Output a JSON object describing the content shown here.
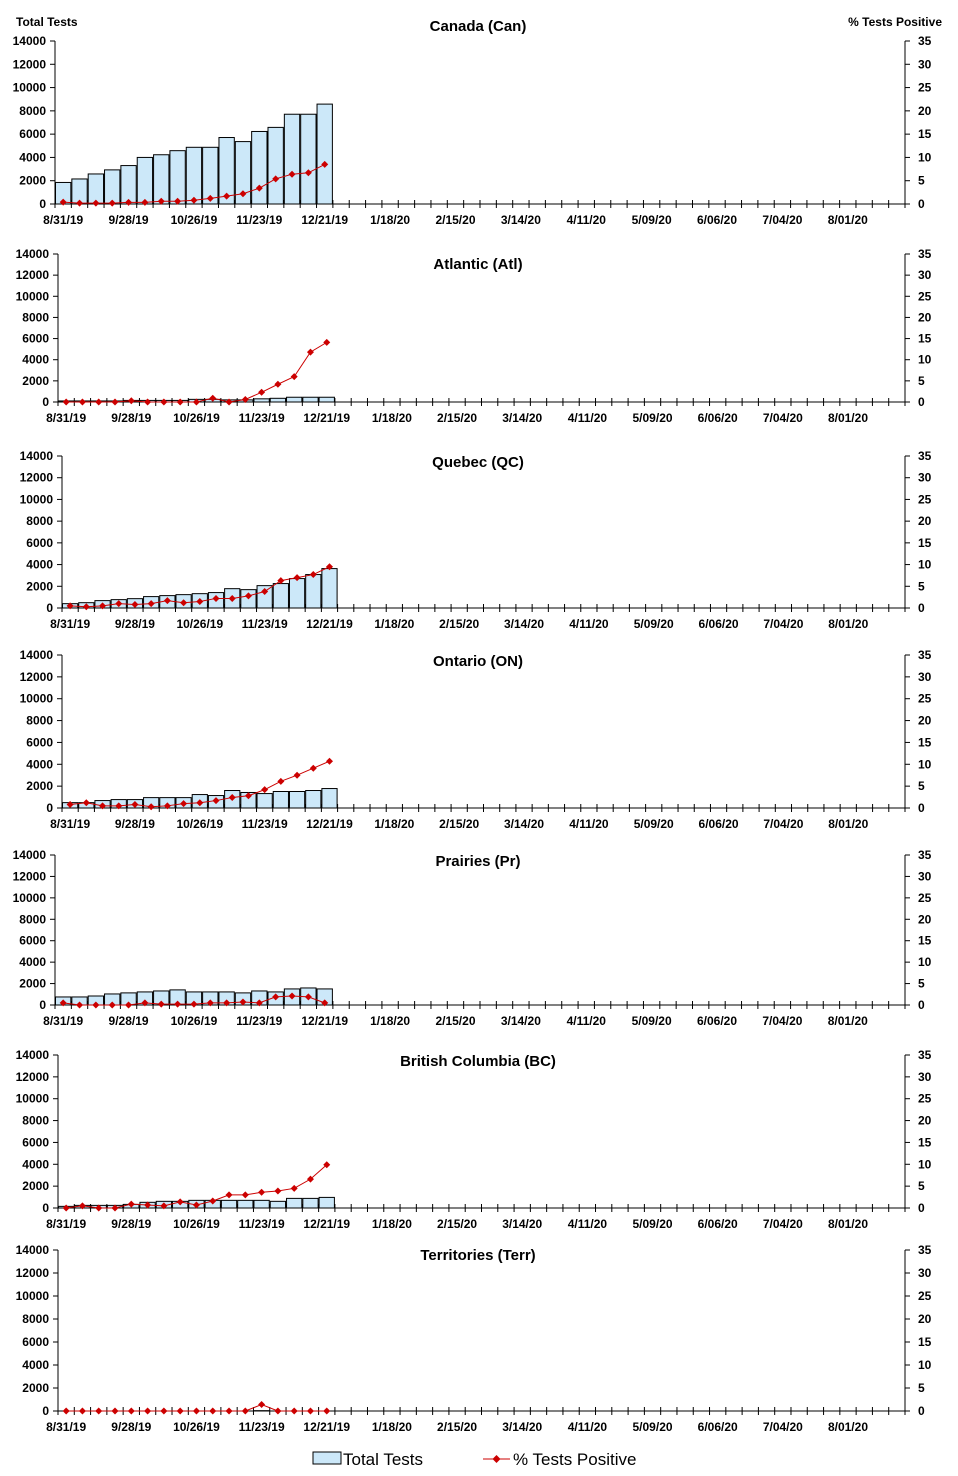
{
  "axis_headers": {
    "left": "Total Tests",
    "right": "% Tests Positive"
  },
  "legend": {
    "bars": "Total Tests",
    "line": "% Tests Positive",
    "position": "bottom"
  },
  "colors": {
    "bar_fill": "#cce8f9",
    "bar_stroke": "#000000",
    "line": "#cc0000"
  },
  "chart_data": [
    {
      "type": "bar+line",
      "title": "Canada (Can)",
      "ylim": [
        0,
        14000
      ],
      "y2lim": [
        0,
        35
      ],
      "x_tick_labels": [
        "8/31/19",
        "9/28/19",
        "10/26/19",
        "11/23/19",
        "12/21/19",
        "1/18/20",
        "2/15/20",
        "3/14/20",
        "4/11/20",
        "5/09/20",
        "6/06/20",
        "7/04/20",
        "8/01/20"
      ],
      "total_tests": [
        1850,
        2150,
        2580,
        2930,
        3300,
        4000,
        4230,
        4580,
        4870,
        4870,
        5710,
        5360,
        6230,
        6580,
        7710,
        7710,
        8580
      ],
      "pct_positive": [
        0.4,
        0.2,
        0.2,
        0.2,
        0.35,
        0.35,
        0.6,
        0.6,
        0.8,
        1.2,
        1.7,
        2.2,
        3.4,
        5.4,
        6.4,
        6.7,
        8.5
      ]
    },
    {
      "type": "bar+line",
      "title": "Atlantic (Atl)",
      "ylim": [
        0,
        14000
      ],
      "y2lim": [
        0,
        35
      ],
      "x_tick_labels": [
        "8/31/19",
        "9/28/19",
        "10/26/19",
        "11/23/19",
        "12/21/19",
        "1/18/20",
        "2/15/20",
        "3/14/20",
        "4/11/20",
        "5/09/20",
        "6/06/20",
        "7/04/20",
        "8/01/20"
      ],
      "total_tests": [
        100,
        100,
        100,
        100,
        150,
        150,
        150,
        150,
        250,
        250,
        200,
        200,
        300,
        350,
        450,
        450,
        450
      ],
      "pct_positive": [
        0,
        0,
        0,
        0,
        0.3,
        0,
        0,
        0,
        0,
        0.9,
        0,
        0.6,
        2.3,
        4.2,
        6.0,
        11.8,
        14.1
      ]
    },
    {
      "type": "bar+line",
      "title": "Quebec (QC)",
      "ylim": [
        0,
        14000
      ],
      "y2lim": [
        0,
        35
      ],
      "x_tick_labels": [
        "8/31/19",
        "9/28/19",
        "10/26/19",
        "11/23/19",
        "12/21/19",
        "1/18/20",
        "2/15/20",
        "3/14/20",
        "4/11/20",
        "5/09/20",
        "6/06/20",
        "7/04/20",
        "8/01/20"
      ],
      "total_tests": [
        400,
        490,
        680,
        770,
        860,
        1050,
        1140,
        1230,
        1320,
        1420,
        1780,
        1690,
        2060,
        2250,
        2710,
        3080,
        3630
      ],
      "pct_positive": [
        0.5,
        0.3,
        0.5,
        1.0,
        0.8,
        1.0,
        1.7,
        1.2,
        1.5,
        2.2,
        2.2,
        2.8,
        3.8,
        6.3,
        7.0,
        7.7,
        9.5
      ]
    },
    {
      "type": "bar+line",
      "title": "Ontario (ON)",
      "ylim": [
        0,
        14000
      ],
      "y2lim": [
        0,
        35
      ],
      "x_tick_labels": [
        "8/31/19",
        "9/28/19",
        "10/26/19",
        "11/23/19",
        "12/21/19",
        "1/18/20",
        "2/15/20",
        "3/14/20",
        "4/11/20",
        "5/09/20",
        "6/06/20",
        "7/04/20",
        "8/01/20"
      ],
      "total_tests": [
        490,
        490,
        680,
        770,
        770,
        950,
        950,
        950,
        1230,
        1140,
        1600,
        1420,
        1320,
        1510,
        1510,
        1600,
        1780
      ],
      "pct_positive": [
        0.8,
        1.2,
        0.5,
        0.5,
        0.8,
        0.3,
        0.5,
        1.0,
        1.2,
        1.7,
        2.4,
        2.8,
        4.2,
        6.1,
        7.5,
        9.1,
        10.7
      ]
    },
    {
      "type": "bar+line",
      "title": "Prairies (Pr)",
      "ylim": [
        0,
        14000
      ],
      "y2lim": [
        0,
        35
      ],
      "x_tick_labels": [
        "8/31/19",
        "9/28/19",
        "10/26/19",
        "11/23/19",
        "12/21/19",
        "1/18/20",
        "2/15/20",
        "3/14/20",
        "4/11/20",
        "5/09/20",
        "6/06/20",
        "7/04/20",
        "8/01/20"
      ],
      "total_tests": [
        750,
        750,
        840,
        1030,
        1130,
        1220,
        1310,
        1410,
        1220,
        1220,
        1220,
        1130,
        1310,
        1220,
        1500,
        1590,
        1500
      ],
      "pct_positive": [
        0.5,
        0,
        0,
        0,
        0,
        0.5,
        0.2,
        0.2,
        0.2,
        0.5,
        0.5,
        0.7,
        0.5,
        1.9,
        2.1,
        1.9,
        0.5
      ]
    },
    {
      "type": "bar+line",
      "title": "British Columbia (BC)",
      "ylim": [
        0,
        14000
      ],
      "y2lim": [
        0,
        35
      ],
      "x_tick_labels": [
        "8/31/19",
        "9/28/19",
        "10/26/19",
        "11/23/19",
        "12/21/19",
        "1/18/20",
        "2/15/20",
        "3/14/20",
        "4/11/20",
        "5/09/20",
        "6/06/20",
        "7/04/20",
        "8/01/20"
      ],
      "total_tests": [
        150,
        240,
        240,
        240,
        330,
        520,
        610,
        610,
        700,
        700,
        700,
        700,
        700,
        610,
        880,
        880,
        970
      ],
      "pct_positive": [
        0,
        0.5,
        0,
        0,
        0.9,
        0.7,
        0.5,
        1.4,
        0.7,
        1.6,
        3.0,
        3.0,
        3.6,
        3.9,
        4.5,
        6.6,
        9.9
      ]
    },
    {
      "type": "bar+line",
      "title": "Territories (Terr)",
      "ylim": [
        0,
        14000
      ],
      "y2lim": [
        0,
        35
      ],
      "x_tick_labels": [
        "8/31/19",
        "9/28/19",
        "10/26/19",
        "11/23/19",
        "12/21/19",
        "1/18/20",
        "2/15/20",
        "3/14/20",
        "4/11/20",
        "5/09/20",
        "6/06/20",
        "7/04/20",
        "8/01/20"
      ],
      "total_tests": [
        0,
        0,
        0,
        0,
        0,
        0,
        0,
        0,
        0,
        0,
        0,
        0,
        30,
        0,
        0,
        0,
        0
      ],
      "pct_positive": [
        0,
        0,
        0,
        0,
        0,
        0,
        0,
        0,
        0,
        0,
        0,
        0,
        1.4,
        0,
        0,
        0,
        0
      ]
    }
  ]
}
